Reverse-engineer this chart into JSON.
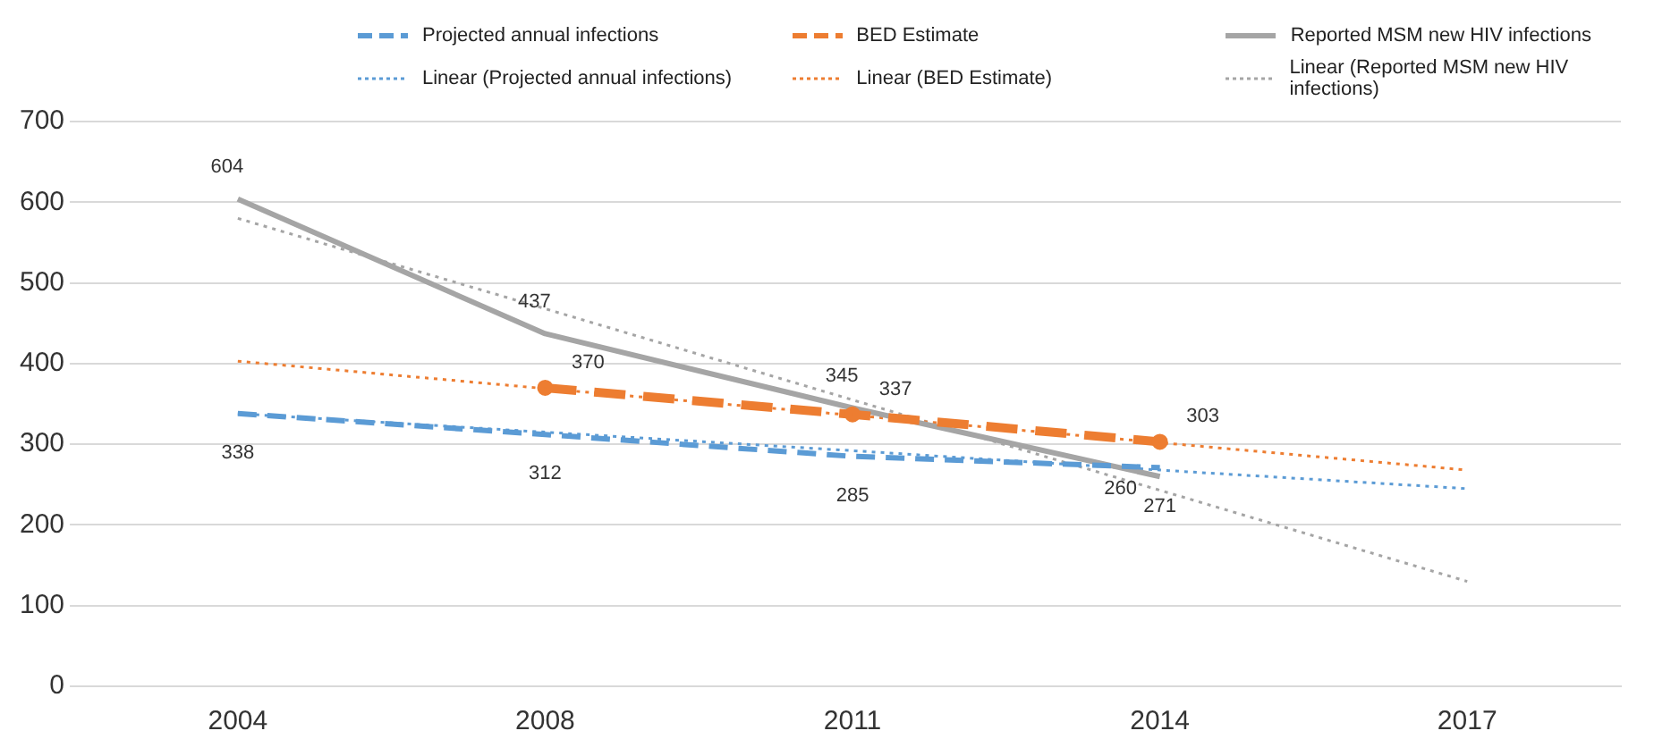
{
  "chart_data": {
    "type": "line",
    "categories": [
      "2004",
      "2008",
      "2011",
      "2014",
      "2017"
    ],
    "ylim": [
      0,
      700
    ],
    "yticks": [
      0,
      100,
      200,
      300,
      400,
      500,
      600,
      700
    ],
    "grid": "y",
    "legend": "top",
    "marker": "none",
    "series": [
      {
        "name": "Projected annual infections",
        "color": "#5b9bd5",
        "line_style": "dashed",
        "values": [
          338,
          312,
          285,
          271,
          null
        ],
        "value_labels": [
          "338",
          "312",
          "285",
          "271",
          null
        ]
      },
      {
        "name": "BED Estimate",
        "color": "#ed7d31",
        "line_style": "dashed",
        "marker": "circle",
        "values": [
          null,
          370,
          337,
          303,
          null
        ],
        "value_labels": [
          null,
          "370",
          "337",
          "303",
          null
        ]
      },
      {
        "name": "Reported MSM new HIV infections",
        "color": "#a5a5a5",
        "line_style": "solid",
        "values": [
          604,
          437,
          345,
          260,
          null
        ],
        "value_labels": [
          "604",
          "437",
          "345",
          "260",
          null
        ]
      },
      {
        "name": "Linear (Projected annual infections)",
        "color": "#5b9bd5",
        "line_style": "dotted",
        "values": [
          338,
          315,
          292,
          268,
          245
        ]
      },
      {
        "name": "Linear (BED Estimate)",
        "color": "#ed7d31",
        "line_style": "dotted",
        "values": [
          403,
          369,
          336,
          302,
          268
        ]
      },
      {
        "name": "Linear (Reported MSM new HIV infections)",
        "color": "#a5a5a5",
        "line_style": "dotted",
        "values": [
          580,
          468,
          355,
          243,
          130
        ]
      }
    ]
  }
}
